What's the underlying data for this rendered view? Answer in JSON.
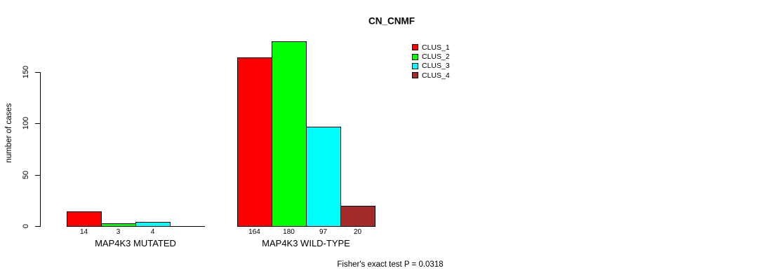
{
  "chart_data": {
    "type": "bar",
    "title": "CN_CNMF",
    "ylabel": "number of cases",
    "xlabel": "",
    "yticks": [
      "0",
      "50",
      "100",
      "150"
    ],
    "ytick_values": [
      0,
      50,
      100,
      150
    ],
    "ylim": [
      0,
      180
    ],
    "grid": false,
    "legend_position": "top-right-inside",
    "series": [
      {
        "name": "CLUS_1",
        "color": "#ff0000"
      },
      {
        "name": "CLUS_2",
        "color": "#00ff00"
      },
      {
        "name": "CLUS_3",
        "color": "#00ffff"
      },
      {
        "name": "CLUS_4",
        "color": "#a52a2a"
      }
    ],
    "groups": [
      {
        "label": "MAP4K3 MUTATED",
        "values": [
          14,
          3,
          4,
          0
        ],
        "value_labels": [
          "14",
          "3",
          "4",
          ""
        ]
      },
      {
        "label": "MAP4K3 WILD-TYPE",
        "values": [
          164,
          180,
          97,
          20
        ],
        "value_labels": [
          "164",
          "180",
          "97",
          "20"
        ]
      }
    ],
    "annotation": "Fisher's exact test P = 0.0318"
  }
}
